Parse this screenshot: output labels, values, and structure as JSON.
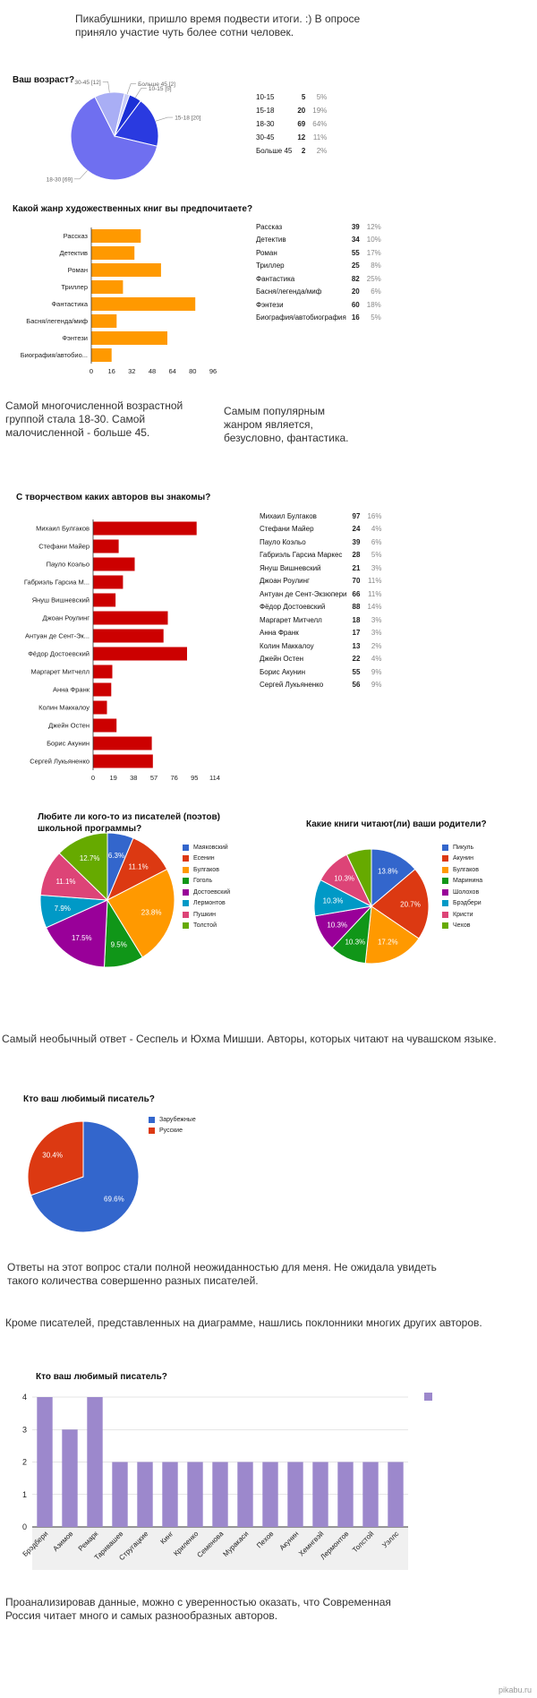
{
  "intro": "Пикабушники, пришло время подвести итоги. :) В опросе приняло участие чуть более сотни человек.",
  "text_age": "Самой многочисленной возрастной группой стала 18-30. Самой малочисленной - больше 45.",
  "text_genre": "Самым популярным жанром является, безусловно, фантастика.",
  "text_unusual": "Самый необычный ответ - Сеспель и Юхма Мишши. Авторы, которых читают на чувашском языке.",
  "text_surprise": "Ответы на этот вопрос стали полной неожиданностью для меня. Не ожидала увидеть такого количества совершенно разных писателей.",
  "text_others": "Кроме писателей, представленных на диаграмме, нашлись поклонники многих других авторов.",
  "text_conclusion": "Проанализировав данные, можно с уверенностью оказать, что Современная Россия читает много и самых разнообразных авторов.",
  "watermark": "pikabu.ru",
  "chart_data": [
    {
      "id": "age",
      "type": "pie",
      "title": "Ваш возраст?",
      "labels": [
        "10-15",
        "15-18",
        "18-30",
        "30-45",
        "Больше 45"
      ],
      "values": [
        5,
        20,
        69,
        12,
        2
      ],
      "percents": [
        "5%",
        "19%",
        "64%",
        "11%",
        "2%"
      ],
      "slice_labels": [
        "10-15 [5]",
        "15-18 [20]",
        "18-30 [69]",
        "30-45 [12]",
        "Больше 45 [2]"
      ],
      "colors": [
        "#1b2fd6",
        "#2a3ae0",
        "#6f6ff0",
        "#a9aef5",
        "#c8ccf7"
      ]
    },
    {
      "id": "genre",
      "type": "bar",
      "orientation": "horizontal",
      "title": "Какой жанр художественных книг вы предпочитаете?",
      "categories": [
        "Рассказ",
        "Детектив",
        "Роман",
        "Триллер",
        "Фантастика",
        "Басня/легенда/миф",
        "Фэнтези",
        "Биография/автобиография"
      ],
      "axis_labels": [
        "Рассказ",
        "Детектив",
        "Роман",
        "Триллер",
        "Фантастика",
        "Басня/легенда/миф",
        "Фэнтези",
        "Биография/автобио..."
      ],
      "values": [
        39,
        34,
        55,
        25,
        82,
        20,
        60,
        16
      ],
      "percents": [
        "12%",
        "10%",
        "17%",
        "8%",
        "25%",
        "6%",
        "18%",
        "5%"
      ],
      "xlim": [
        0,
        96
      ],
      "ticks": [
        0,
        16,
        32,
        48,
        64,
        80,
        96
      ],
      "color": "#ff9900"
    },
    {
      "id": "authors",
      "type": "bar",
      "orientation": "horizontal",
      "title": "С творчеством каких авторов вы знакомы?",
      "categories": [
        "Михаил Булгаков",
        "Стефани Майер",
        "Пауло Коэльо",
        "Габриэль Гарсиа Маркес",
        "Януш Вишневский",
        "Джоан Роулинг",
        "Антуан де Сент-Экзюпери",
        "Фёдор Достоевский",
        "Маргарет Митчелл",
        "Анна Франк",
        "Колин Маккалоу",
        "Джейн Остен",
        "Борис Акунин",
        "Сергей Лукьяненко"
      ],
      "axis_labels": [
        "Михаил Булгаков",
        "Стефани Майер",
        "Пауло Коэльо",
        "Габриэль Гарсиа М...",
        "Януш Вишневский",
        "Джоан Роулинг",
        "Антуан де Сент-Эк...",
        "Фёдор Достоевский",
        "Маргарет Митчелл",
        "Анна Франк",
        "Колин Маккалоу",
        "Джейн Остен",
        "Борис Акунин",
        "Сергей Лукьяненко"
      ],
      "values": [
        97,
        24,
        39,
        28,
        21,
        70,
        66,
        88,
        18,
        17,
        13,
        22,
        55,
        56
      ],
      "percents": [
        "16%",
        "4%",
        "6%",
        "5%",
        "3%",
        "11%",
        "11%",
        "14%",
        "3%",
        "3%",
        "2%",
        "4%",
        "9%",
        "9%"
      ],
      "xlim": [
        0,
        114
      ],
      "ticks": [
        0,
        19,
        38,
        57,
        76,
        95,
        114
      ],
      "color": "#cc0000"
    },
    {
      "id": "school",
      "type": "pie",
      "title": "Любите ли кого-то из писателей (поэтов) школьной программы?",
      "labels": [
        "Маяковский",
        "Есенин",
        "Булгаков",
        "Гоголь",
        "Достоевский",
        "Лермонтов",
        "Пушкин",
        "Толстой"
      ],
      "values": [
        6.3,
        11.1,
        23.8,
        9.5,
        17.5,
        7.9,
        11.1,
        12.7
      ],
      "slice_labels": [
        "6.3%",
        "11.1%",
        "23.8%",
        "9.5%",
        "17.5%",
        "7.9%",
        "11.1%",
        "12.7%"
      ],
      "colors": [
        "#3366cc",
        "#dc3912",
        "#ff9900",
        "#109618",
        "#990099",
        "#0099c6",
        "#dd4477",
        "#66aa00"
      ]
    },
    {
      "id": "parents",
      "type": "pie",
      "title": "Какие книги читают(ли) ваши родители?",
      "labels": [
        "Пикуль",
        "Акунин",
        "Булгаков",
        "Маринина",
        "Шолохов",
        "Брэдбери",
        "Кристи",
        "Чехов"
      ],
      "values": [
        13.8,
        20.7,
        17.2,
        10.3,
        10.3,
        10.3,
        10.3,
        7.1
      ],
      "slice_labels": [
        "13.8%",
        "20.7%",
        "17.2%",
        "10.3%",
        "10.3%",
        "10.3%",
        "10.3%",
        ""
      ],
      "colors": [
        "#3366cc",
        "#dc3912",
        "#ff9900",
        "#109618",
        "#990099",
        "#0099c6",
        "#dd4477",
        "#66aa00"
      ]
    },
    {
      "id": "favorite_origin",
      "type": "pie",
      "title": "Кто ваш любимый писатель?",
      "labels": [
        "Зарубежные",
        "Русские"
      ],
      "values": [
        69.6,
        30.4
      ],
      "slice_labels": [
        "69.6%",
        "30.4%"
      ],
      "colors": [
        "#3366cc",
        "#dc3912"
      ]
    },
    {
      "id": "favorite_writers",
      "type": "bar",
      "orientation": "vertical",
      "title": "Кто ваш любимый писатель?",
      "categories": [
        "Брэдбери",
        "Азимов",
        "Ремарк",
        "Таривашев",
        "Стругацкие",
        "Кинг",
        "Криленко",
        "Семенова",
        "Муракаси",
        "Пехов",
        "Акунин",
        "Хемнгвэй",
        "Лермонтов",
        "Толстой",
        "Уэллс"
      ],
      "values": [
        4,
        3,
        4,
        2,
        2,
        2,
        2,
        2,
        2,
        2,
        2,
        2,
        2,
        2,
        2
      ],
      "ylim": [
        0,
        4
      ],
      "ticks": [
        0,
        1,
        2,
        3,
        4
      ],
      "color": "#9c88cc"
    }
  ]
}
